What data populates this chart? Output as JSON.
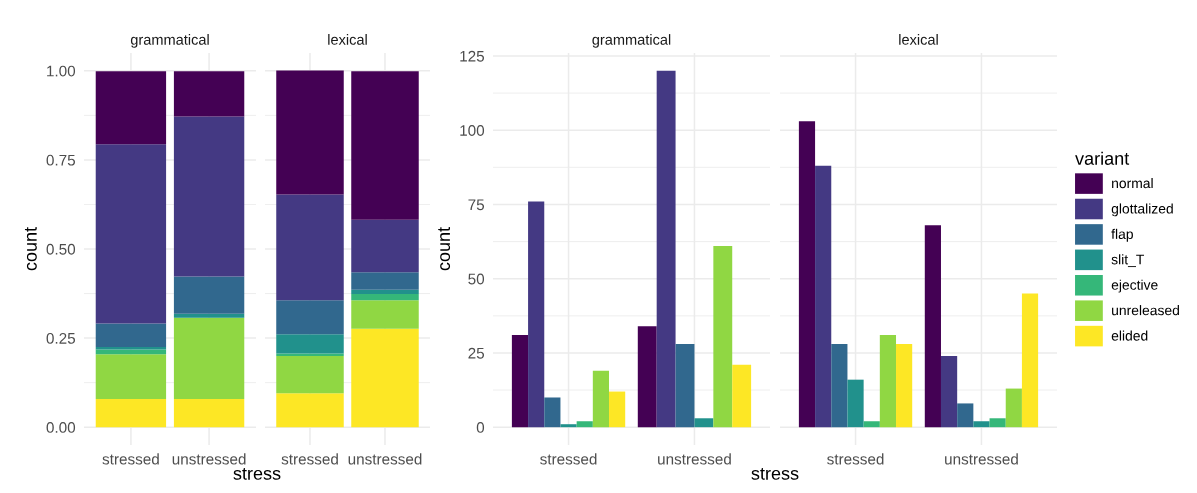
{
  "chart_data": [
    {
      "type": "bar",
      "title": "grammatical",
      "ylabel": "count",
      "xlabel": "stress",
      "categories": [
        "stressed",
        "unstressed"
      ],
      "stacked": true,
      "ylim": [
        -0.05,
        1.05
      ],
      "yticks": [
        {
          "value": 0,
          "label": "0.00"
        },
        {
          "value": 0.25,
          "label": "0.25"
        },
        {
          "value": 0.5,
          "label": "0.50"
        },
        {
          "value": 0.75,
          "label": "0.75"
        },
        {
          "value": 1,
          "label": "1.00"
        }
      ],
      "grid": true,
      "series": [
        {
          "color": "#fde725",
          "values": [
            0.079,
            0.079
          ]
        },
        {
          "color": "#90d743",
          "values": [
            0.126,
            0.228
          ]
        },
        {
          "color": "#35b779",
          "values": [
            0.013,
            null
          ]
        },
        {
          "color": "#21918c",
          "values": [
            0.007,
            0.011
          ]
        },
        {
          "color": "#31688e",
          "values": [
            0.066,
            0.105
          ]
        },
        {
          "color": "#443983",
          "values": [
            0.503,
            0.449
          ]
        },
        {
          "color": "#440154",
          "values": [
            0.205,
            0.127
          ]
        }
      ]
    },
    {
      "type": "bar",
      "title": "lexical",
      "categories": [
        "stressed",
        "unstressed"
      ],
      "stacked": true,
      "ylim": [
        -0.05,
        1.05
      ],
      "yticks": [
        {
          "value": 0,
          "label": null
        },
        {
          "value": 0.25,
          "label": null
        },
        {
          "value": 0.5,
          "label": null
        },
        {
          "value": 0.75,
          "label": null
        },
        {
          "value": 1,
          "label": null
        }
      ],
      "tick_labels": "x",
      "grid": true,
      "series": [
        {
          "color": "#fde725",
          "values": [
            0.095,
            0.276
          ]
        },
        {
          "color": "#90d743",
          "values": [
            0.105,
            0.08
          ]
        },
        {
          "color": "#35b779",
          "values": [
            0.007,
            0.018
          ]
        },
        {
          "color": "#21918c",
          "values": [
            0.054,
            0.012
          ]
        },
        {
          "color": "#31688e",
          "values": [
            0.095,
            0.049
          ]
        },
        {
          "color": "#443983",
          "values": [
            0.297,
            0.147
          ]
        },
        {
          "color": "#440154",
          "values": [
            0.348,
            0.417
          ]
        }
      ]
    },
    {
      "type": "bar",
      "title": "grammatical",
      "ylabel": "count",
      "xlabel": "stress",
      "categories": [
        "stressed",
        "unstressed"
      ],
      "ylim": [
        -6,
        126
      ],
      "yticks": [
        0,
        25,
        50,
        75,
        100,
        125
      ],
      "grid": true,
      "series": [
        {
          "color": "#440154",
          "values": [
            31,
            34
          ]
        },
        {
          "color": "#443983",
          "values": [
            76,
            120
          ]
        },
        {
          "color": "#31688e",
          "values": [
            10,
            28
          ]
        },
        {
          "color": "#21918c",
          "values": [
            1,
            3
          ]
        },
        {
          "color": "#35b779",
          "values": [
            2,
            null
          ]
        },
        {
          "color": "#90d743",
          "values": [
            19,
            61
          ]
        },
        {
          "color": "#fde725",
          "values": [
            12,
            21
          ]
        }
      ]
    },
    {
      "type": "bar",
      "title": "lexical",
      "categories": [
        "stressed",
        "unstressed"
      ],
      "ylim": [
        -6,
        126
      ],
      "yticks": [
        {
          "value": 0,
          "label": null
        },
        {
          "value": 25,
          "label": null
        },
        {
          "value": 50,
          "label": null
        },
        {
          "value": 75,
          "label": null
        },
        {
          "value": 100,
          "label": null
        },
        {
          "value": 125,
          "label": null
        }
      ],
      "tick_labels": "x",
      "grid": true,
      "legend": "right",
      "legend_title": "variant",
      "series": [
        {
          "name": "normal",
          "color": "#440154",
          "values": [
            103,
            68
          ]
        },
        {
          "name": "glottalized",
          "color": "#443983",
          "values": [
            88,
            24
          ]
        },
        {
          "name": "flap",
          "color": "#31688e",
          "values": [
            28,
            8
          ]
        },
        {
          "name": "slit_T",
          "color": "#21918c",
          "values": [
            16,
            2
          ]
        },
        {
          "name": "ejective",
          "color": "#35b779",
          "values": [
            2,
            3
          ]
        },
        {
          "name": "unreleased",
          "color": "#90d743",
          "values": [
            31,
            13
          ]
        },
        {
          "name": "elided",
          "color": "#fde725",
          "values": [
            28,
            45
          ]
        }
      ]
    }
  ]
}
